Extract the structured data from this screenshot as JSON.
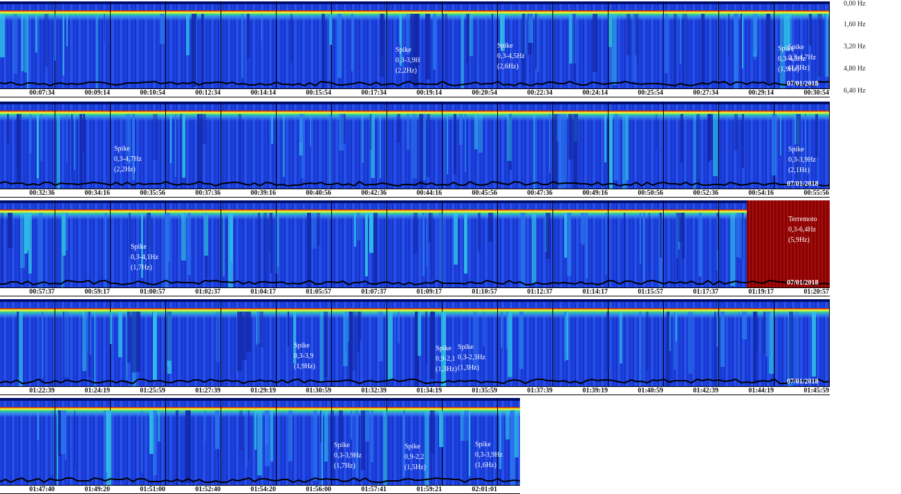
{
  "frequency_axis": [
    "0,00 Hz",
    "1,60 Hz",
    "3,20 Hz",
    "4,80 Hz",
    "6,40 Hz"
  ],
  "rows": [
    {
      "times": [
        "00:07:34",
        "00:09:14",
        "00:10:54",
        "00:12:34",
        "00:14:14",
        "00:15:54",
        "00:17:34",
        "00:19:14",
        "00:20:54",
        "00:22:34",
        "00:24:14",
        "00:25:54",
        "00:27:34",
        "00:29:14",
        "00:30:54"
      ],
      "date": "07/01/2018",
      "annotations": [
        {
          "lines": [
            "Spike",
            "0,3-3,9H",
            "(2,2Hz)"
          ]
        },
        {
          "lines": [
            "Spike",
            "0,3-4,5Hz",
            "(2,6Hz)"
          ]
        },
        {
          "lines": [
            "Spike",
            "0,3-4,5Hz",
            "(1,9Hz)"
          ]
        },
        {
          "lines": [
            "Spike",
            "0,3-4,7Hz",
            "(1,8Hz)"
          ]
        }
      ]
    },
    {
      "times": [
        "00:32:36",
        "00:34:16",
        "00:35:56",
        "00:37:36",
        "00:39:16",
        "00:40:56",
        "00:42:36",
        "00:44:16",
        "00:45:56",
        "00:47:36",
        "00:49:16",
        "00:50:56",
        "00:52:36",
        "00:54:16",
        "00:55:56"
      ],
      "date": "07/01/2018",
      "annotations": [
        {
          "lines": [
            "Spike",
            "0,3-4,7Hz",
            "(2,2Hz)"
          ]
        },
        {
          "lines": [
            "Spike",
            "0,3-3,9Hz",
            "(2,1Hz)"
          ]
        }
      ]
    },
    {
      "times": [
        "00:57:37",
        "00:59:17",
        "01:00:57",
        "01:02:37",
        "01:04:17",
        "01:05:57",
        "01:07:37",
        "01:09:17",
        "01:10:57",
        "01:12:37",
        "01:14:17",
        "01:15:57",
        "01:17:37",
        "01:19:17",
        "01:20:57"
      ],
      "date": "07/01/2018",
      "annotations": [
        {
          "lines": [
            "Spike",
            "0,3-4,1Hz",
            "(1,7Hz)"
          ]
        },
        {
          "lines": [
            "Terremoto",
            "0,3-6,4Hz",
            "(5,9Hz)"
          ]
        }
      ]
    },
    {
      "times": [
        "01:22:39",
        "01:24:19",
        "01:25:59",
        "01:27:39",
        "01:29:19",
        "01:30:59",
        "01:32:39",
        "01:34:19",
        "01:35:59",
        "01:37:39",
        "01:39:19",
        "01:40:59",
        "01:42:39",
        "01:44:19",
        "01:45:59"
      ],
      "date": "07/01/2018",
      "annotations": [
        {
          "lines": [
            "Spike",
            "0,3-3,9",
            "(1,9Hz)"
          ]
        },
        {
          "lines": [
            "Spike",
            "0,9-2,1",
            "(1,3Hz)"
          ]
        },
        {
          "lines": [
            "Spike",
            "0,3-2,3Hz",
            "(1,3Hz)"
          ]
        }
      ]
    },
    {
      "times": [
        "01:47:40",
        "01:49:20",
        "01:51:00",
        "01:52:40",
        "01:54:20",
        "01:56:00",
        "01:57:41",
        "01:59:21",
        "02:01:01"
      ],
      "annotations": [
        {
          "lines": [
            "Spike",
            "0,3-3,9Hz",
            "(1,7Hz)"
          ]
        },
        {
          "lines": [
            "Spike",
            "0,9-2,2",
            "(1,5Hz)"
          ]
        },
        {
          "lines": [
            "Spike",
            "0,3-3,9Hz",
            "(1,6Hz)"
          ]
        }
      ]
    }
  ]
}
